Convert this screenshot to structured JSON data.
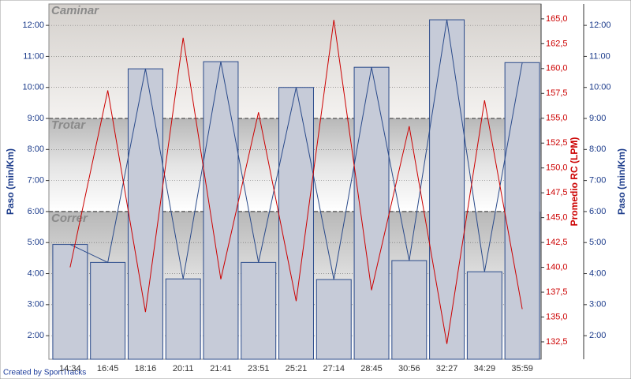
{
  "chart_data": {
    "type": "bar-line",
    "credit": "Created by SportTracks",
    "ylabel": "Paso (min/Km)",
    "y2label": "Promedio RC (LPM)",
    "categories": [
      "14:34",
      "16:45",
      "18:16",
      "20:11",
      "21:41",
      "23:51",
      "25:21",
      "27:14",
      "28:45",
      "30:56",
      "32:27",
      "34:29",
      "35:59"
    ],
    "series": [
      {
        "values": [
          4.94,
          4.36,
          10.6,
          3.83,
          10.83,
          4.36,
          10.0,
          3.81,
          10.65,
          4.42,
          12.18,
          4.06,
          10.8
        ],
        "color": "#2a4a8a",
        "fill": "#c6cbd8"
      },
      {
        "values": [
          140.0,
          157.8,
          135.5,
          163.1,
          138.8,
          155.6,
          136.6,
          164.9,
          137.7,
          154.2,
          132.3,
          156.8,
          135.8
        ],
        "color": "#cc0000",
        "axis": "y2"
      }
    ],
    "zones": [
      "Caminar",
      "Trotar",
      "Correr"
    ],
    "zone_lines": [
      9,
      6
    ],
    "ylim": [
      1.24,
      12.69
    ],
    "yticks": [
      {
        "value": 2,
        "label": "2:00"
      },
      {
        "value": 3,
        "label": "3:00"
      },
      {
        "value": 4,
        "label": "4:00"
      },
      {
        "value": 5,
        "label": "5:00"
      },
      {
        "value": 6,
        "label": "6:00"
      },
      {
        "value": 7,
        "label": "7:00"
      },
      {
        "value": 8,
        "label": "8:00"
      },
      {
        "value": 9,
        "label": "9:00"
      },
      {
        "value": 10,
        "label": "10:00"
      },
      {
        "value": 11,
        "label": "11:00"
      },
      {
        "value": 12,
        "label": "12:00"
      }
    ],
    "y2lim": [
      130.75,
      166.5
    ],
    "y2ticks": [
      {
        "value": 132.5,
        "label": "132,5"
      },
      {
        "value": 135,
        "label": "135,0"
      },
      {
        "value": 137.5,
        "label": "137,5"
      },
      {
        "value": 140,
        "label": "140,0"
      },
      {
        "value": 142.5,
        "label": "142,5"
      },
      {
        "value": 145,
        "label": "145,0"
      },
      {
        "value": 147.5,
        "label": "147,5"
      },
      {
        "value": 150,
        "label": "150,0"
      },
      {
        "value": 152.5,
        "label": "152,5"
      },
      {
        "value": 155,
        "label": "155,0"
      },
      {
        "value": 157.5,
        "label": "157,5"
      },
      {
        "value": 160,
        "label": "160,0"
      },
      {
        "value": 162.5,
        "label": "162,5"
      },
      {
        "value": 165,
        "label": "165,0"
      }
    ],
    "grid": true
  }
}
